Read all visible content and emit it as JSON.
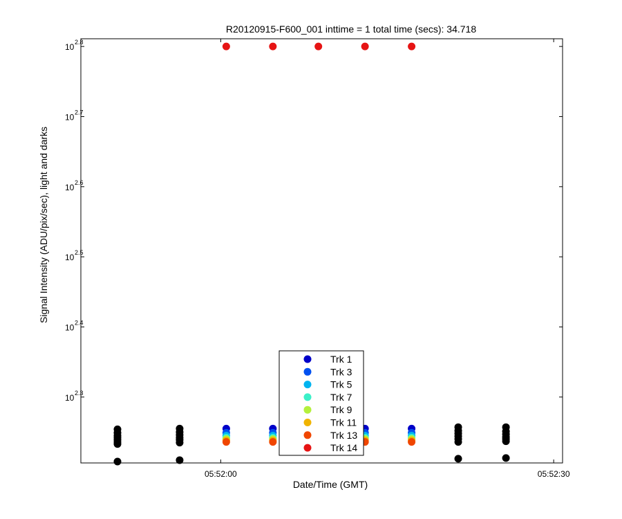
{
  "chart_data": {
    "type": "scatter",
    "title": "R20120915-F600_001 inttime = 1 total time (secs): 34.718",
    "xlabel": "Date/Time (GMT)",
    "ylabel": "Signal Intensity (ADU/pix/sec), light and darks",
    "yscale": "log",
    "grid": false,
    "legend_position": "bottom-center",
    "x_ticks": [
      {
        "label": "05:52:00",
        "t": 0
      },
      {
        "label": "05:52:30",
        "t": 30
      }
    ],
    "y_ticks": [
      {
        "base": "10",
        "exp": "2.3",
        "value": 2.3
      },
      {
        "base": "10",
        "exp": "2.4",
        "value": 2.4
      },
      {
        "base": "10",
        "exp": "2.5",
        "value": 2.5
      },
      {
        "base": "10",
        "exp": "2.6",
        "value": 2.6
      },
      {
        "base": "10",
        "exp": "2.7",
        "value": 2.7
      },
      {
        "base": "10",
        "exp": "2.8",
        "value": 2.8
      }
    ],
    "x_range_seconds": [
      -12.6,
      30.8
    ],
    "y_range_log10": [
      2.206,
      2.811
    ],
    "series": [
      {
        "name": "Trk 1",
        "color": "#0000c8",
        "points": [
          [
            0.5,
            2.255
          ],
          [
            4.7,
            2.255
          ],
          [
            8.8,
            2.255
          ],
          [
            13.0,
            2.255
          ],
          [
            17.2,
            2.255
          ]
        ]
      },
      {
        "name": "Trk 3",
        "color": "#0050f0",
        "points": [
          [
            0.5,
            2.249
          ],
          [
            4.7,
            2.249
          ],
          [
            8.8,
            2.249
          ],
          [
            13.0,
            2.249
          ],
          [
            17.2,
            2.249
          ]
        ]
      },
      {
        "name": "Trk 5",
        "color": "#00b4f0",
        "points": [
          [
            0.5,
            2.245
          ],
          [
            4.7,
            2.245
          ],
          [
            8.8,
            2.245
          ],
          [
            13.0,
            2.245
          ],
          [
            17.2,
            2.245
          ]
        ]
      },
      {
        "name": "Trk 7",
        "color": "#3cf0c8",
        "points": [
          [
            0.5,
            2.242
          ],
          [
            4.7,
            2.242
          ],
          [
            8.8,
            2.242
          ],
          [
            13.0,
            2.242
          ],
          [
            17.2,
            2.242
          ]
        ]
      },
      {
        "name": "Trk 9",
        "color": "#b4f03c",
        "points": [
          [
            0.5,
            2.24
          ],
          [
            4.7,
            2.24
          ],
          [
            8.8,
            2.24
          ],
          [
            13.0,
            2.24
          ],
          [
            17.2,
            2.24
          ]
        ]
      },
      {
        "name": "Trk 11",
        "color": "#f0b400",
        "points": [
          [
            0.5,
            2.238
          ],
          [
            4.7,
            2.238
          ],
          [
            8.8,
            2.238
          ],
          [
            13.0,
            2.238
          ],
          [
            17.2,
            2.238
          ]
        ]
      },
      {
        "name": "Trk 13",
        "color": "#f04600",
        "points": [
          [
            0.5,
            2.236
          ],
          [
            4.7,
            2.236
          ],
          [
            8.8,
            2.236
          ],
          [
            13.0,
            2.236
          ],
          [
            17.2,
            2.236
          ]
        ]
      },
      {
        "name": "Trk 14",
        "color": "#e61414",
        "points": [
          [
            0.5,
            2.8
          ],
          [
            4.7,
            2.8
          ],
          [
            8.8,
            2.8
          ],
          [
            13.0,
            2.8
          ],
          [
            17.2,
            2.8
          ]
        ]
      }
    ],
    "darks": {
      "color": "#000000",
      "points": [
        [
          -9.3,
          2.254
        ],
        [
          -9.3,
          2.249
        ],
        [
          -9.3,
          2.245
        ],
        [
          -9.3,
          2.242
        ],
        [
          -9.3,
          2.239
        ],
        [
          -9.3,
          2.236
        ],
        [
          -9.3,
          2.233
        ],
        [
          -9.3,
          2.208
        ],
        [
          -3.7,
          2.255
        ],
        [
          -3.7,
          2.25
        ],
        [
          -3.7,
          2.246
        ],
        [
          -3.7,
          2.242
        ],
        [
          -3.7,
          2.239
        ],
        [
          -3.7,
          2.235
        ],
        [
          -3.7,
          2.21
        ],
        [
          21.4,
          2.257
        ],
        [
          21.4,
          2.252
        ],
        [
          21.4,
          2.248
        ],
        [
          21.4,
          2.244
        ],
        [
          21.4,
          2.24
        ],
        [
          21.4,
          2.236
        ],
        [
          21.4,
          2.212
        ],
        [
          25.7,
          2.257
        ],
        [
          25.7,
          2.251
        ],
        [
          25.7,
          2.247
        ],
        [
          25.7,
          2.243
        ],
        [
          25.7,
          2.24
        ],
        [
          25.7,
          2.237
        ],
        [
          25.7,
          2.213
        ]
      ]
    }
  }
}
